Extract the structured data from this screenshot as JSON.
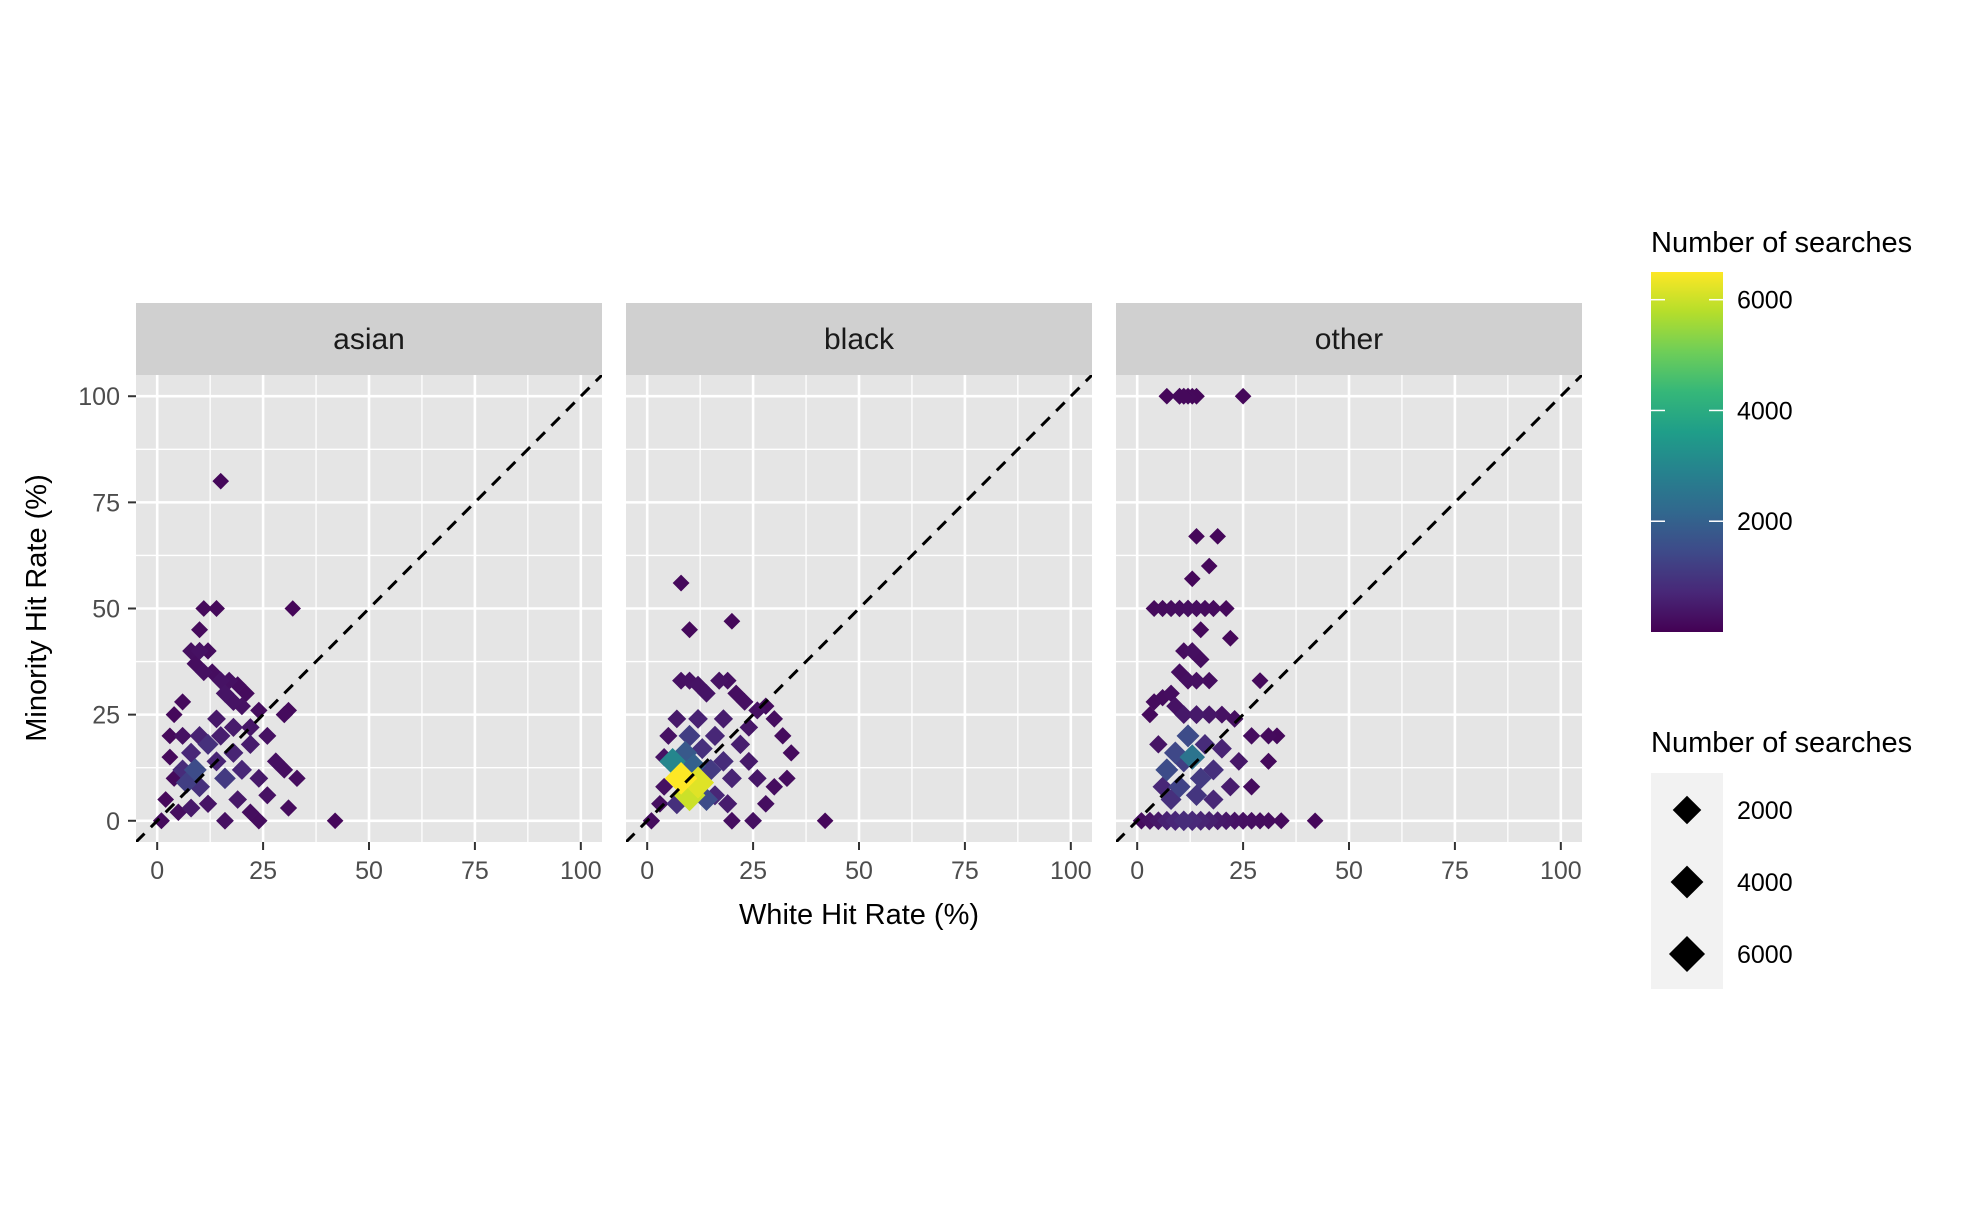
{
  "chart_data": {
    "type": "scatter",
    "facets": [
      "asian",
      "black",
      "other"
    ],
    "xlabel": "White Hit Rate (%)",
    "ylabel": "Minority Hit Rate (%)",
    "xlim": [
      -5,
      105
    ],
    "ylim": [
      -5,
      105
    ],
    "x_ticks": [
      0,
      25,
      50,
      75,
      100
    ],
    "y_ticks": [
      0,
      25,
      50,
      75,
      100
    ],
    "grid": true,
    "reference_line": "y = x",
    "legend": {
      "placement": "right",
      "color_title": "Number of searches",
      "color_ticks": [
        2000,
        4000,
        6000
      ],
      "color_range": [
        0,
        6500
      ],
      "size_title": "Number of searches",
      "size_entries": [
        2000,
        4000,
        6000
      ]
    },
    "colors": {
      "panel_bg": "#e5e5e5",
      "strip_bg": "#d0d0d0",
      "grid": "#ffffff",
      "viridis": [
        "#440154",
        "#482878",
        "#3e4a89",
        "#31688e",
        "#26828e",
        "#1f9e89",
        "#35b779",
        "#6ece58",
        "#b5de2b",
        "#fde725"
      ]
    },
    "panels": [
      {
        "facet": "asian",
        "points": [
          {
            "x": 15,
            "y": 80,
            "n": 120
          },
          {
            "x": 11,
            "y": 50,
            "n": 140
          },
          {
            "x": 14,
            "y": 50,
            "n": 150
          },
          {
            "x": 32,
            "y": 50,
            "n": 100
          },
          {
            "x": 10,
            "y": 45,
            "n": 160
          },
          {
            "x": 8,
            "y": 40,
            "n": 250
          },
          {
            "x": 10,
            "y": 40,
            "n": 300
          },
          {
            "x": 12,
            "y": 40,
            "n": 200
          },
          {
            "x": 9,
            "y": 37,
            "n": 220
          },
          {
            "x": 11,
            "y": 35,
            "n": 260
          },
          {
            "x": 13,
            "y": 35,
            "n": 230
          },
          {
            "x": 15,
            "y": 33,
            "n": 320
          },
          {
            "x": 17,
            "y": 33,
            "n": 280
          },
          {
            "x": 19,
            "y": 32,
            "n": 210
          },
          {
            "x": 21,
            "y": 30,
            "n": 190
          },
          {
            "x": 16,
            "y": 30,
            "n": 350
          },
          {
            "x": 18,
            "y": 28,
            "n": 330
          },
          {
            "x": 20,
            "y": 27,
            "n": 300
          },
          {
            "x": 24,
            "y": 26,
            "n": 200
          },
          {
            "x": 30,
            "y": 25,
            "n": 180
          },
          {
            "x": 31,
            "y": 26,
            "n": 160
          },
          {
            "x": 6,
            "y": 28,
            "n": 170
          },
          {
            "x": 4,
            "y": 25,
            "n": 150
          },
          {
            "x": 3,
            "y": 20,
            "n": 140
          },
          {
            "x": 3,
            "y": 15,
            "n": 150
          },
          {
            "x": 4,
            "y": 10,
            "n": 160
          },
          {
            "x": 2,
            "y": 5,
            "n": 130
          },
          {
            "x": 1,
            "y": 0,
            "n": 160
          },
          {
            "x": 6,
            "y": 12,
            "n": 800
          },
          {
            "x": 7,
            "y": 9,
            "n": 1200
          },
          {
            "x": 9,
            "y": 12,
            "n": 1500
          },
          {
            "x": 8,
            "y": 16,
            "n": 700
          },
          {
            "x": 10,
            "y": 20,
            "n": 600
          },
          {
            "x": 12,
            "y": 18,
            "n": 900
          },
          {
            "x": 14,
            "y": 14,
            "n": 650
          },
          {
            "x": 16,
            "y": 10,
            "n": 1100
          },
          {
            "x": 15,
            "y": 20,
            "n": 550
          },
          {
            "x": 18,
            "y": 16,
            "n": 650
          },
          {
            "x": 20,
            "y": 12,
            "n": 700
          },
          {
            "x": 22,
            "y": 18,
            "n": 500
          },
          {
            "x": 24,
            "y": 10,
            "n": 420
          },
          {
            "x": 26,
            "y": 6,
            "n": 300
          },
          {
            "x": 28,
            "y": 14,
            "n": 260
          },
          {
            "x": 30,
            "y": 12,
            "n": 240
          },
          {
            "x": 33,
            "y": 10,
            "n": 200
          },
          {
            "x": 31,
            "y": 3,
            "n": 180
          },
          {
            "x": 42,
            "y": 0,
            "n": 120
          },
          {
            "x": 19,
            "y": 5,
            "n": 400
          },
          {
            "x": 12,
            "y": 4,
            "n": 350
          },
          {
            "x": 8,
            "y": 3,
            "n": 420
          },
          {
            "x": 10,
            "y": 8,
            "n": 900
          },
          {
            "x": 14,
            "y": 24,
            "n": 420
          },
          {
            "x": 18,
            "y": 22,
            "n": 480
          },
          {
            "x": 22,
            "y": 22,
            "n": 380
          },
          {
            "x": 26,
            "y": 20,
            "n": 300
          },
          {
            "x": 6,
            "y": 20,
            "n": 300
          },
          {
            "x": 5,
            "y": 2,
            "n": 220
          },
          {
            "x": 16,
            "y": 0,
            "n": 260
          },
          {
            "x": 22,
            "y": 2,
            "n": 220
          },
          {
            "x": 24,
            "y": 0,
            "n": 200
          }
        ]
      },
      {
        "facet": "black",
        "points": [
          {
            "x": 8,
            "y": 56,
            "n": 140
          },
          {
            "x": 10,
            "y": 45,
            "n": 150
          },
          {
            "x": 20,
            "y": 47,
            "n": 130
          },
          {
            "x": 8,
            "y": 33,
            "n": 280
          },
          {
            "x": 10,
            "y": 33,
            "n": 300
          },
          {
            "x": 12,
            "y": 32,
            "n": 330
          },
          {
            "x": 14,
            "y": 30,
            "n": 360
          },
          {
            "x": 17,
            "y": 33,
            "n": 310
          },
          {
            "x": 19,
            "y": 33,
            "n": 260
          },
          {
            "x": 21,
            "y": 30,
            "n": 240
          },
          {
            "x": 23,
            "y": 28,
            "n": 260
          },
          {
            "x": 26,
            "y": 26,
            "n": 300
          },
          {
            "x": 28,
            "y": 27,
            "n": 200
          },
          {
            "x": 30,
            "y": 24,
            "n": 220
          },
          {
            "x": 32,
            "y": 20,
            "n": 200
          },
          {
            "x": 34,
            "y": 16,
            "n": 180
          },
          {
            "x": 33,
            "y": 10,
            "n": 200
          },
          {
            "x": 30,
            "y": 8,
            "n": 220
          },
          {
            "x": 28,
            "y": 4,
            "n": 240
          },
          {
            "x": 25,
            "y": 0,
            "n": 260
          },
          {
            "x": 42,
            "y": 0,
            "n": 120
          },
          {
            "x": 20,
            "y": 0,
            "n": 240
          },
          {
            "x": 5,
            "y": 20,
            "n": 300
          },
          {
            "x": 4,
            "y": 15,
            "n": 320
          },
          {
            "x": 4,
            "y": 8,
            "n": 280
          },
          {
            "x": 3,
            "y": 4,
            "n": 240
          },
          {
            "x": 1,
            "y": 0,
            "n": 200
          },
          {
            "x": 6,
            "y": 14,
            "n": 3000
          },
          {
            "x": 8,
            "y": 10,
            "n": 6500
          },
          {
            "x": 10,
            "y": 6,
            "n": 6000
          },
          {
            "x": 11,
            "y": 13,
            "n": 2000
          },
          {
            "x": 9,
            "y": 16,
            "n": 1800
          },
          {
            "x": 12,
            "y": 9,
            "n": 6200
          },
          {
            "x": 13,
            "y": 17,
            "n": 900
          },
          {
            "x": 15,
            "y": 12,
            "n": 1100
          },
          {
            "x": 14,
            "y": 5,
            "n": 1500
          },
          {
            "x": 16,
            "y": 20,
            "n": 700
          },
          {
            "x": 18,
            "y": 14,
            "n": 800
          },
          {
            "x": 20,
            "y": 10,
            "n": 650
          },
          {
            "x": 22,
            "y": 18,
            "n": 550
          },
          {
            "x": 24,
            "y": 14,
            "n": 450
          },
          {
            "x": 26,
            "y": 10,
            "n": 400
          },
          {
            "x": 24,
            "y": 22,
            "n": 380
          },
          {
            "x": 18,
            "y": 24,
            "n": 500
          },
          {
            "x": 12,
            "y": 24,
            "n": 600
          },
          {
            "x": 7,
            "y": 24,
            "n": 420
          },
          {
            "x": 10,
            "y": 20,
            "n": 1200
          },
          {
            "x": 16,
            "y": 6,
            "n": 700
          },
          {
            "x": 19,
            "y": 4,
            "n": 500
          },
          {
            "x": 7,
            "y": 4,
            "n": 900
          }
        ]
      },
      {
        "facet": "other",
        "points": [
          {
            "x": 7,
            "y": 100,
            "n": 120
          },
          {
            "x": 10,
            "y": 100,
            "n": 150
          },
          {
            "x": 11,
            "y": 100,
            "n": 150
          },
          {
            "x": 12,
            "y": 100,
            "n": 140
          },
          {
            "x": 13,
            "y": 100,
            "n": 130
          },
          {
            "x": 14,
            "y": 100,
            "n": 130
          },
          {
            "x": 25,
            "y": 100,
            "n": 120
          },
          {
            "x": 14,
            "y": 67,
            "n": 120
          },
          {
            "x": 19,
            "y": 67,
            "n": 120
          },
          {
            "x": 17,
            "y": 60,
            "n": 120
          },
          {
            "x": 13,
            "y": 57,
            "n": 120
          },
          {
            "x": 4,
            "y": 50,
            "n": 160
          },
          {
            "x": 6,
            "y": 50,
            "n": 180
          },
          {
            "x": 8,
            "y": 50,
            "n": 200
          },
          {
            "x": 10,
            "y": 50,
            "n": 220
          },
          {
            "x": 12,
            "y": 50,
            "n": 240
          },
          {
            "x": 14,
            "y": 50,
            "n": 220
          },
          {
            "x": 16,
            "y": 50,
            "n": 200
          },
          {
            "x": 18,
            "y": 50,
            "n": 180
          },
          {
            "x": 21,
            "y": 50,
            "n": 150
          },
          {
            "x": 15,
            "y": 45,
            "n": 150
          },
          {
            "x": 22,
            "y": 43,
            "n": 130
          },
          {
            "x": 11,
            "y": 40,
            "n": 200
          },
          {
            "x": 13,
            "y": 40,
            "n": 250
          },
          {
            "x": 15,
            "y": 38,
            "n": 220
          },
          {
            "x": 10,
            "y": 35,
            "n": 220
          },
          {
            "x": 12,
            "y": 33,
            "n": 260
          },
          {
            "x": 14,
            "y": 33,
            "n": 280
          },
          {
            "x": 17,
            "y": 33,
            "n": 220
          },
          {
            "x": 29,
            "y": 33,
            "n": 140
          },
          {
            "x": 8,
            "y": 30,
            "n": 220
          },
          {
            "x": 6,
            "y": 29,
            "n": 200
          },
          {
            "x": 4,
            "y": 28,
            "n": 180
          },
          {
            "x": 3,
            "y": 25,
            "n": 170
          },
          {
            "x": 9,
            "y": 27,
            "n": 320
          },
          {
            "x": 11,
            "y": 25,
            "n": 420
          },
          {
            "x": 14,
            "y": 25,
            "n": 450
          },
          {
            "x": 17,
            "y": 25,
            "n": 380
          },
          {
            "x": 20,
            "y": 25,
            "n": 300
          },
          {
            "x": 23,
            "y": 24,
            "n": 250
          },
          {
            "x": 27,
            "y": 20,
            "n": 220
          },
          {
            "x": 31,
            "y": 20,
            "n": 180
          },
          {
            "x": 33,
            "y": 20,
            "n": 150
          },
          {
            "x": 31,
            "y": 14,
            "n": 170
          },
          {
            "x": 27,
            "y": 8,
            "n": 200
          },
          {
            "x": 1,
            "y": 0,
            "n": 200
          },
          {
            "x": 3,
            "y": 0,
            "n": 300
          },
          {
            "x": 5,
            "y": 0,
            "n": 400
          },
          {
            "x": 7,
            "y": 0,
            "n": 600
          },
          {
            "x": 9,
            "y": 0,
            "n": 700
          },
          {
            "x": 11,
            "y": 0,
            "n": 800
          },
          {
            "x": 13,
            "y": 0,
            "n": 750
          },
          {
            "x": 15,
            "y": 0,
            "n": 650
          },
          {
            "x": 17,
            "y": 0,
            "n": 550
          },
          {
            "x": 19,
            "y": 0,
            "n": 450
          },
          {
            "x": 21,
            "y": 0,
            "n": 380
          },
          {
            "x": 23,
            "y": 0,
            "n": 320
          },
          {
            "x": 25,
            "y": 0,
            "n": 280
          },
          {
            "x": 27,
            "y": 0,
            "n": 240
          },
          {
            "x": 29,
            "y": 0,
            "n": 200
          },
          {
            "x": 31,
            "y": 0,
            "n": 180
          },
          {
            "x": 34,
            "y": 0,
            "n": 160
          },
          {
            "x": 42,
            "y": 0,
            "n": 120
          },
          {
            "x": 7,
            "y": 12,
            "n": 1500
          },
          {
            "x": 9,
            "y": 16,
            "n": 1400
          },
          {
            "x": 11,
            "y": 14,
            "n": 1200
          },
          {
            "x": 13,
            "y": 15,
            "n": 2500
          },
          {
            "x": 15,
            "y": 10,
            "n": 1100
          },
          {
            "x": 12,
            "y": 20,
            "n": 1500
          },
          {
            "x": 10,
            "y": 8,
            "n": 1300
          },
          {
            "x": 16,
            "y": 18,
            "n": 800
          },
          {
            "x": 18,
            "y": 12,
            "n": 900
          },
          {
            "x": 20,
            "y": 17,
            "n": 650
          },
          {
            "x": 22,
            "y": 8,
            "n": 500
          },
          {
            "x": 24,
            "y": 14,
            "n": 400
          },
          {
            "x": 8,
            "y": 5,
            "n": 900
          },
          {
            "x": 14,
            "y": 6,
            "n": 1000
          },
          {
            "x": 18,
            "y": 5,
            "n": 700
          },
          {
            "x": 5,
            "y": 18,
            "n": 350
          },
          {
            "x": 6,
            "y": 8,
            "n": 700
          }
        ]
      }
    ]
  }
}
